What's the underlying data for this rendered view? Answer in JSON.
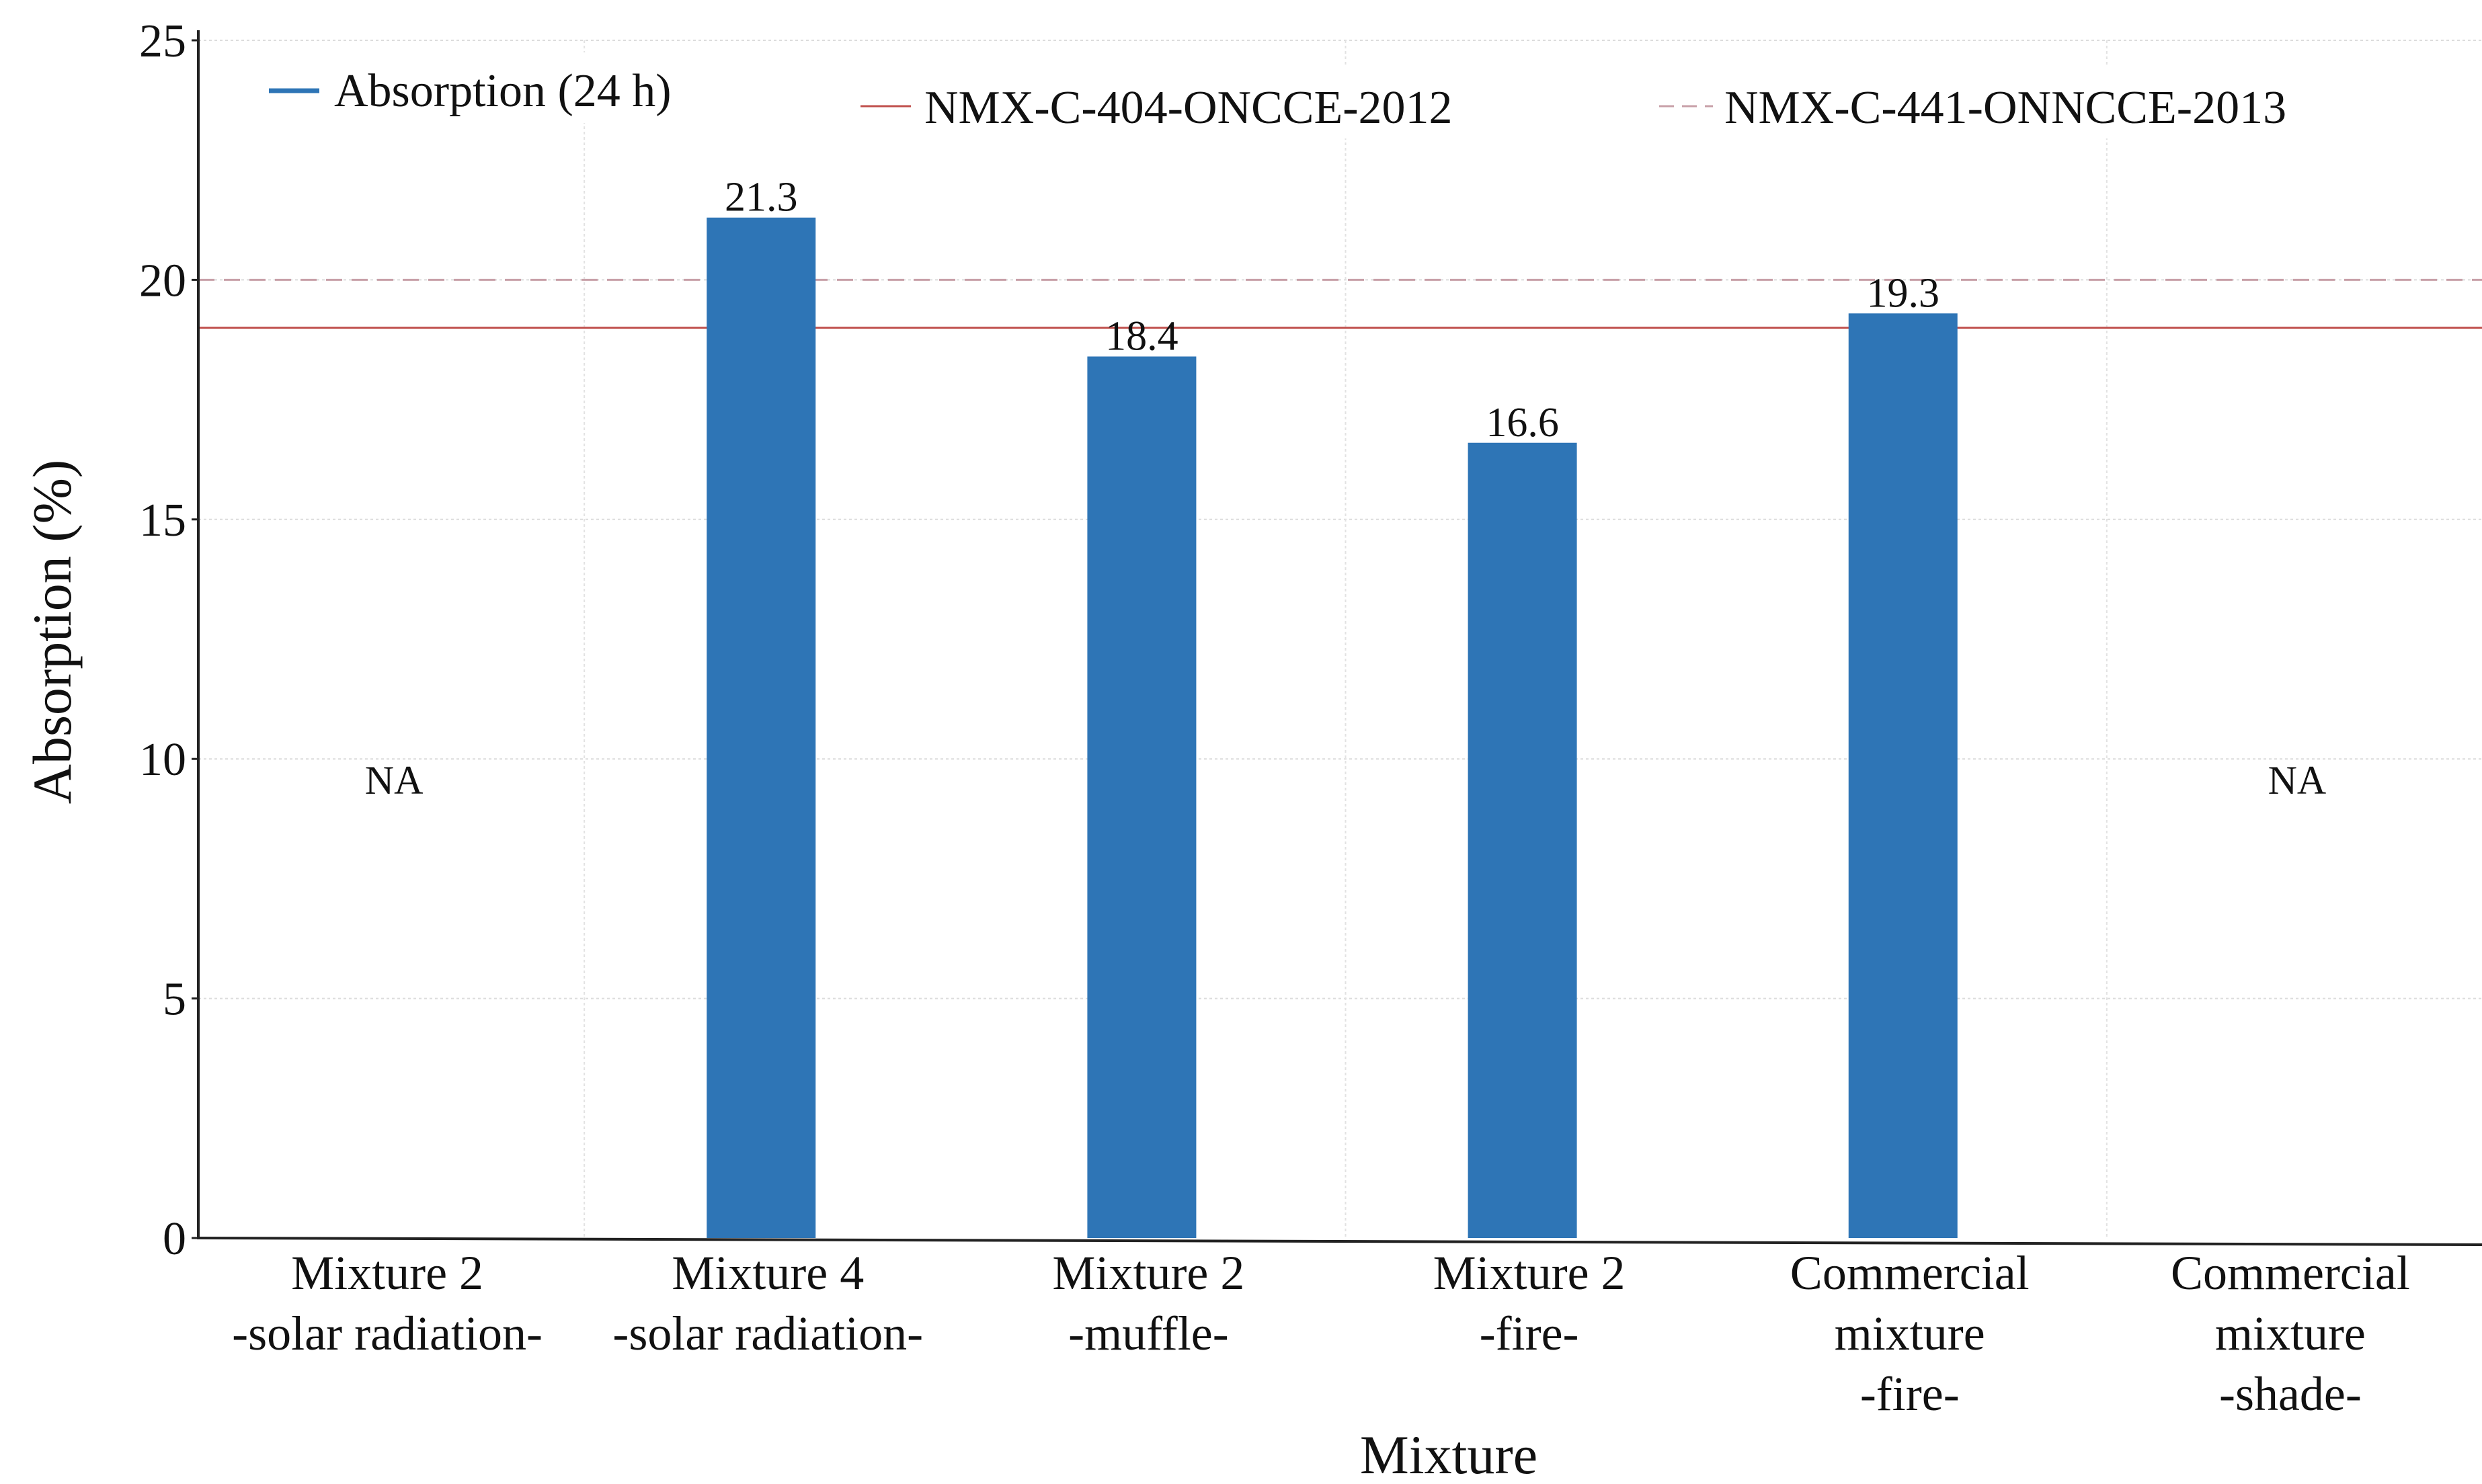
{
  "chart_data": {
    "type": "bar",
    "title": "",
    "xlabel": "Mixture",
    "ylabel": "Absorption (%)",
    "ylim": [
      0,
      25
    ],
    "yticks": [
      0,
      5,
      10,
      15,
      20,
      25
    ],
    "grid": true,
    "legend_position": "top",
    "categories": [
      [
        "Mixture 2",
        "-solar radiation-"
      ],
      [
        "Mixture 4",
        "-solar radiation-"
      ],
      [
        "Mixture 2",
        "-muffle-"
      ],
      [
        "Mixture 2",
        "-fire-"
      ],
      [
        "Commercial",
        "mixture",
        "-fire-"
      ],
      [
        "Commercial",
        "mixture",
        "-shade-"
      ]
    ],
    "series": [
      {
        "name": "Absorption (24 h)",
        "color": "#2e75b6",
        "values": [
          null,
          21.3,
          18.4,
          16.6,
          19.3,
          null
        ],
        "labels": [
          "NA",
          "21.3",
          "18.4",
          "16.6",
          "19.3",
          "NA"
        ]
      }
    ],
    "reference_lines": [
      {
        "name": "NMX-C-404-ONCCE-2012",
        "value": 19,
        "color": "#c0504d",
        "style": "solid"
      },
      {
        "name": "NMX-C-441-ONNCCE-2013",
        "value": 20,
        "color": "#c8a0a8",
        "style": "dashed"
      }
    ]
  }
}
